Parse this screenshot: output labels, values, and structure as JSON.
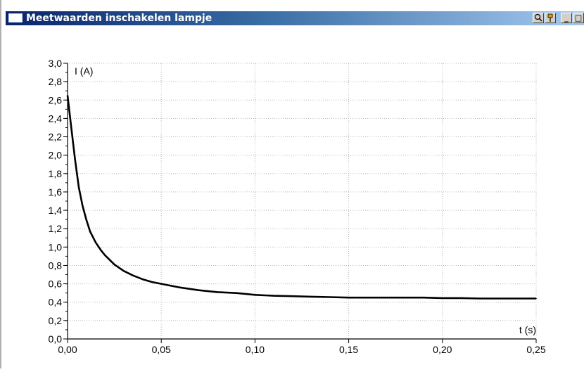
{
  "window": {
    "title": "Meetwaarden inschakelen lampje",
    "buttons": [
      {
        "name": "zoom-button",
        "icon": "magnifier-icon"
      },
      {
        "name": "info-button",
        "icon": "pin-icon"
      },
      {
        "name": "minimize-button",
        "icon": "minimize-icon",
        "glyph": "_"
      },
      {
        "name": "maximize-button",
        "icon": "maximize-icon",
        "glyph": "□"
      },
      {
        "name": "close-button",
        "icon": "close-icon",
        "glyph": "✕"
      }
    ]
  },
  "chart_data": {
    "type": "line",
    "xlabel": "t (s)",
    "ylabel": "I (A)",
    "xlim": [
      0,
      0.25
    ],
    "ylim": [
      0,
      3.0
    ],
    "grid": true,
    "x_ticks": [
      "0,00",
      "0,05",
      "0,10",
      "0,15",
      "0,20",
      "0,25"
    ],
    "y_ticks": [
      "0,0",
      "0,2",
      "0,4",
      "0,6",
      "0,8",
      "1,0",
      "1,2",
      "1,4",
      "1,6",
      "1,8",
      "2,0",
      "2,2",
      "2,4",
      "2,6",
      "2,8",
      "3,0"
    ],
    "series": [
      {
        "color": "#000000",
        "x": [
          0.0,
          0.002,
          0.004,
          0.006,
          0.008,
          0.01,
          0.012,
          0.015,
          0.018,
          0.02,
          0.025,
          0.03,
          0.035,
          0.04,
          0.045,
          0.05,
          0.06,
          0.07,
          0.08,
          0.09,
          0.1,
          0.11,
          0.12,
          0.13,
          0.14,
          0.15,
          0.16,
          0.17,
          0.18,
          0.19,
          0.2,
          0.21,
          0.22,
          0.23,
          0.24,
          0.25
        ],
        "y": [
          2.65,
          2.3,
          1.95,
          1.65,
          1.45,
          1.3,
          1.17,
          1.05,
          0.96,
          0.91,
          0.81,
          0.74,
          0.69,
          0.65,
          0.62,
          0.6,
          0.56,
          0.53,
          0.51,
          0.5,
          0.48,
          0.47,
          0.465,
          0.46,
          0.455,
          0.45,
          0.45,
          0.45,
          0.45,
          0.45,
          0.445,
          0.445,
          0.44,
          0.44,
          0.44,
          0.44
        ]
      }
    ]
  }
}
